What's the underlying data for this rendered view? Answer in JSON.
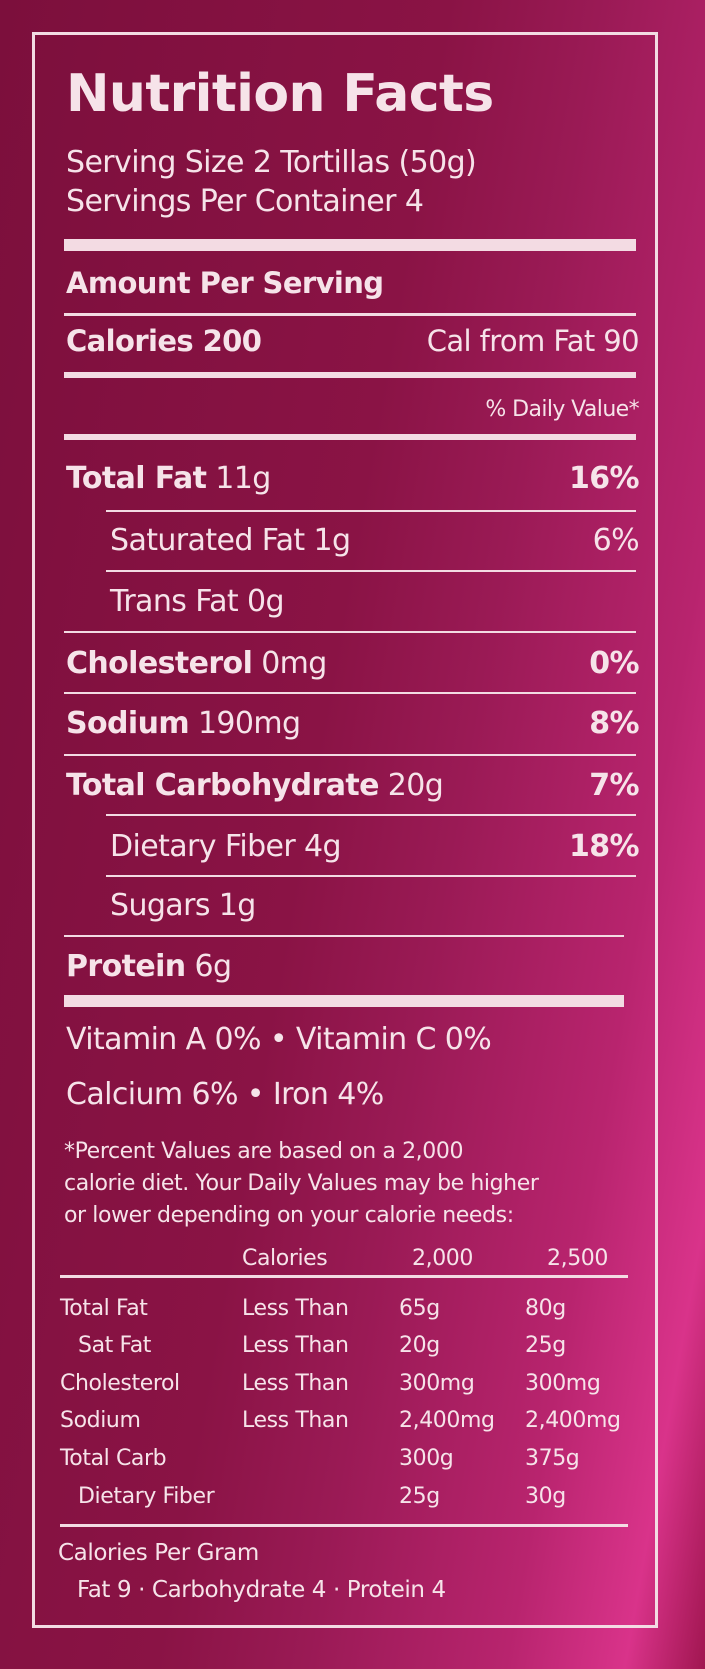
{
  "title": "Nutrition Facts",
  "serving_size": "Serving Size  2 Tortillas (50g)",
  "servings_per_container": "Servings Per Container  4",
  "amount_per_serving": "Amount Per Serving",
  "calories": "Calories 200",
  "cal_from_fat": "Cal from Fat 90",
  "daily_value_header": "% Daily Value*",
  "nutrients": [
    {
      "name": "Total Fat",
      "amount": "11g",
      "dv": "16%"
    },
    {
      "name": "Saturated Fat",
      "amount": "1g",
      "dv": "6%"
    },
    {
      "name": "Trans Fat",
      "amount": "0g",
      "dv": ""
    },
    {
      "name": "Cholesterol",
      "amount": "0mg",
      "dv": "0%"
    },
    {
      "name": "Sodium",
      "amount": "190mg",
      "dv": "8%"
    },
    {
      "name": "Total Carbohydrate",
      "amount": "20g",
      "dv": "7%"
    },
    {
      "name": "Dietary Fiber",
      "amount": "4g",
      "dv": "18%"
    },
    {
      "name": "Sugars",
      "amount": "1g",
      "dv": ""
    },
    {
      "name": "Protein",
      "amount": "6g",
      "dv": ""
    }
  ],
  "vitamins_line1": "Vitamin A  0%  •  Vitamin C  0%",
  "vitamins_line2": "Calcium  6%    •  Iron  4%",
  "footnote": [
    "*Percent Values are based on a 2,000",
    "calorie diet. Your Daily Values may be higher",
    "or lower depending on your calorie needs:"
  ],
  "dv_table": {
    "header": [
      "Calories",
      "2,000",
      "2,500"
    ],
    "rows": [
      [
        "Total Fat",
        "Less Than",
        "65g",
        "80g"
      ],
      [
        "Sat Fat",
        "Less Than",
        "20g",
        "25g"
      ],
      [
        "Cholesterol",
        "Less Than",
        "300mg",
        "300mg"
      ],
      [
        "Sodium",
        "Less Than",
        "2,400mg",
        "2,400mg"
      ],
      [
        "Total Carb",
        "",
        "300g",
        "375g"
      ],
      [
        "Dietary Fiber",
        "",
        "25g",
        "30g"
      ]
    ]
  },
  "calories_per_gram": "Calories Per Gram",
  "calories_per_gram_values": "Fat 9  ·  Carbohydrate 4  ·  Protein 4"
}
